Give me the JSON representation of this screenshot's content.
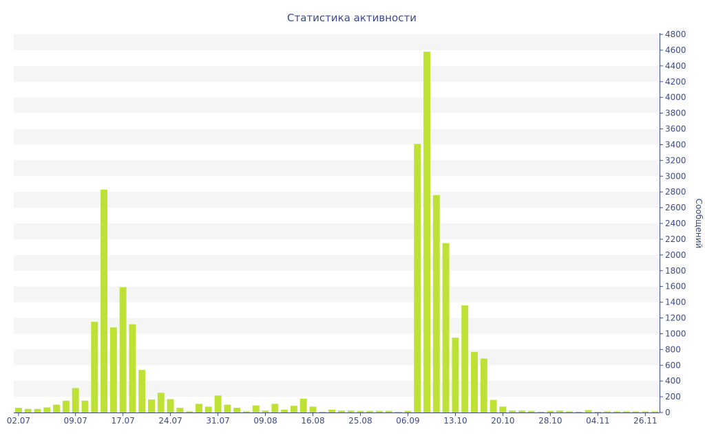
{
  "chart_data": {
    "type": "bar",
    "title": "Статистика активности",
    "ylabel": "Сообщений",
    "xlabel": "",
    "ylim": [
      0,
      4800
    ],
    "y_ticks": [
      0,
      200,
      400,
      600,
      800,
      1000,
      1200,
      1400,
      1600,
      1800,
      2000,
      2200,
      2400,
      2600,
      2800,
      3000,
      3200,
      3400,
      3600,
      3800,
      4000,
      4200,
      4400,
      4600,
      4800
    ],
    "x_tick_labels": [
      {
        "label": "02.07",
        "index": 0
      },
      {
        "label": "09.07",
        "index": 6
      },
      {
        "label": "17.07",
        "index": 11
      },
      {
        "label": "24.07",
        "index": 16
      },
      {
        "label": "31.07",
        "index": 21
      },
      {
        "label": "09.08",
        "index": 26
      },
      {
        "label": "16.08",
        "index": 31
      },
      {
        "label": "25.08",
        "index": 36
      },
      {
        "label": "06.09",
        "index": 41
      },
      {
        "label": "13.10",
        "index": 46
      },
      {
        "label": "20.10",
        "index": 51
      },
      {
        "label": "28.10",
        "index": 56
      },
      {
        "label": "04.11",
        "index": 61
      },
      {
        "label": "26.11",
        "index": 66
      }
    ],
    "values": [
      60,
      45,
      45,
      65,
      100,
      150,
      310,
      150,
      1150,
      2830,
      1080,
      1590,
      1120,
      540,
      165,
      250,
      170,
      60,
      15,
      110,
      75,
      215,
      100,
      60,
      15,
      90,
      25,
      110,
      35,
      85,
      175,
      75,
      10,
      35,
      25,
      25,
      20,
      20,
      20,
      20,
      10,
      20,
      3410,
      4580,
      2760,
      2150,
      950,
      1360,
      770,
      685,
      160,
      75,
      25,
      25,
      20,
      10,
      20,
      25,
      15,
      10,
      30,
      10,
      15,
      15,
      15,
      15,
      15,
      15
    ],
    "bar_color": "#bde235",
    "band_color": "#f5f5f5",
    "axis_color": "#3a4a8a",
    "grid": true,
    "y_axis_side": "right"
  }
}
